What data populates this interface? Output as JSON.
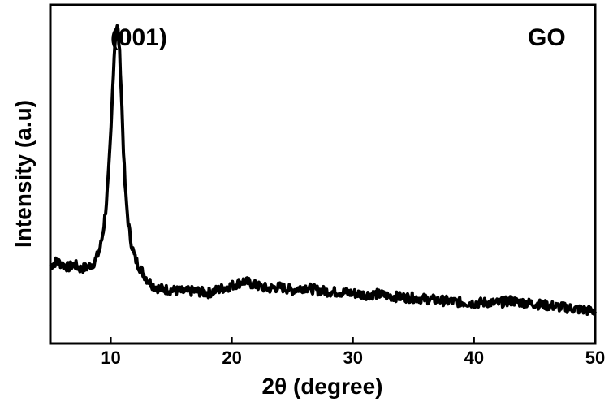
{
  "chart_data": {
    "type": "line",
    "title": "",
    "xlabel": "2θ (degree)",
    "ylabel": "Intensity (a.u)",
    "xlim": [
      5,
      50
    ],
    "ylim": [
      0,
      100
    ],
    "xticks": [
      10,
      20,
      30,
      40,
      50
    ],
    "xtick_labels": [
      "10",
      "20",
      "30",
      "40",
      "50"
    ],
    "yticks_shown": false,
    "grid": false,
    "legend": "none",
    "line_color": "#000000",
    "annotations": [
      {
        "text": "(001)",
        "x": 12.3,
        "y": 93
      },
      {
        "text": "GO",
        "x": 46.0,
        "y": 93
      }
    ],
    "series": [
      {
        "x": [
          5,
          5.5,
          6,
          6.5,
          7,
          7.5,
          8,
          8.5,
          8.8,
          9.0,
          9.2,
          9.4,
          9.6,
          9.8,
          10.0,
          10.1,
          10.2,
          10.3,
          10.4,
          10.5,
          10.6,
          10.7,
          10.8,
          10.9,
          11.0,
          11.1,
          11.2,
          11.4,
          11.6,
          11.8,
          12.0,
          12.3,
          12.6,
          13.0,
          13.5,
          14,
          15,
          16,
          17,
          18,
          19,
          20,
          21,
          22,
          23,
          24,
          25,
          26,
          27,
          28,
          29,
          30,
          31,
          32,
          33,
          34,
          35,
          36,
          37,
          38,
          39,
          40,
          41,
          42,
          43,
          44,
          45,
          46,
          47,
          48,
          49,
          50
        ],
        "y": [
          20.5,
          22,
          21,
          20,
          21,
          19.5,
          20,
          21,
          23,
          25,
          28,
          33,
          40,
          50,
          64,
          74,
          84,
          92,
          97,
          99.5,
          97.5,
          92,
          84,
          74,
          63,
          53,
          45,
          36,
          30,
          26,
          23,
          20.5,
          18.5,
          16,
          14,
          13,
          12.5,
          12,
          12.2,
          11.5,
          12.8,
          14,
          15.5,
          14,
          13,
          13.5,
          12.5,
          13.5,
          12.5,
          12,
          11.8,
          11.5,
          11,
          11.2,
          10.5,
          10.2,
          10,
          9.6,
          9.2,
          8.8,
          8.5,
          8.2,
          8.5,
          8.2,
          9,
          8.4,
          8,
          7.5,
          7,
          6.5,
          6,
          5.5
        ]
      }
    ]
  }
}
